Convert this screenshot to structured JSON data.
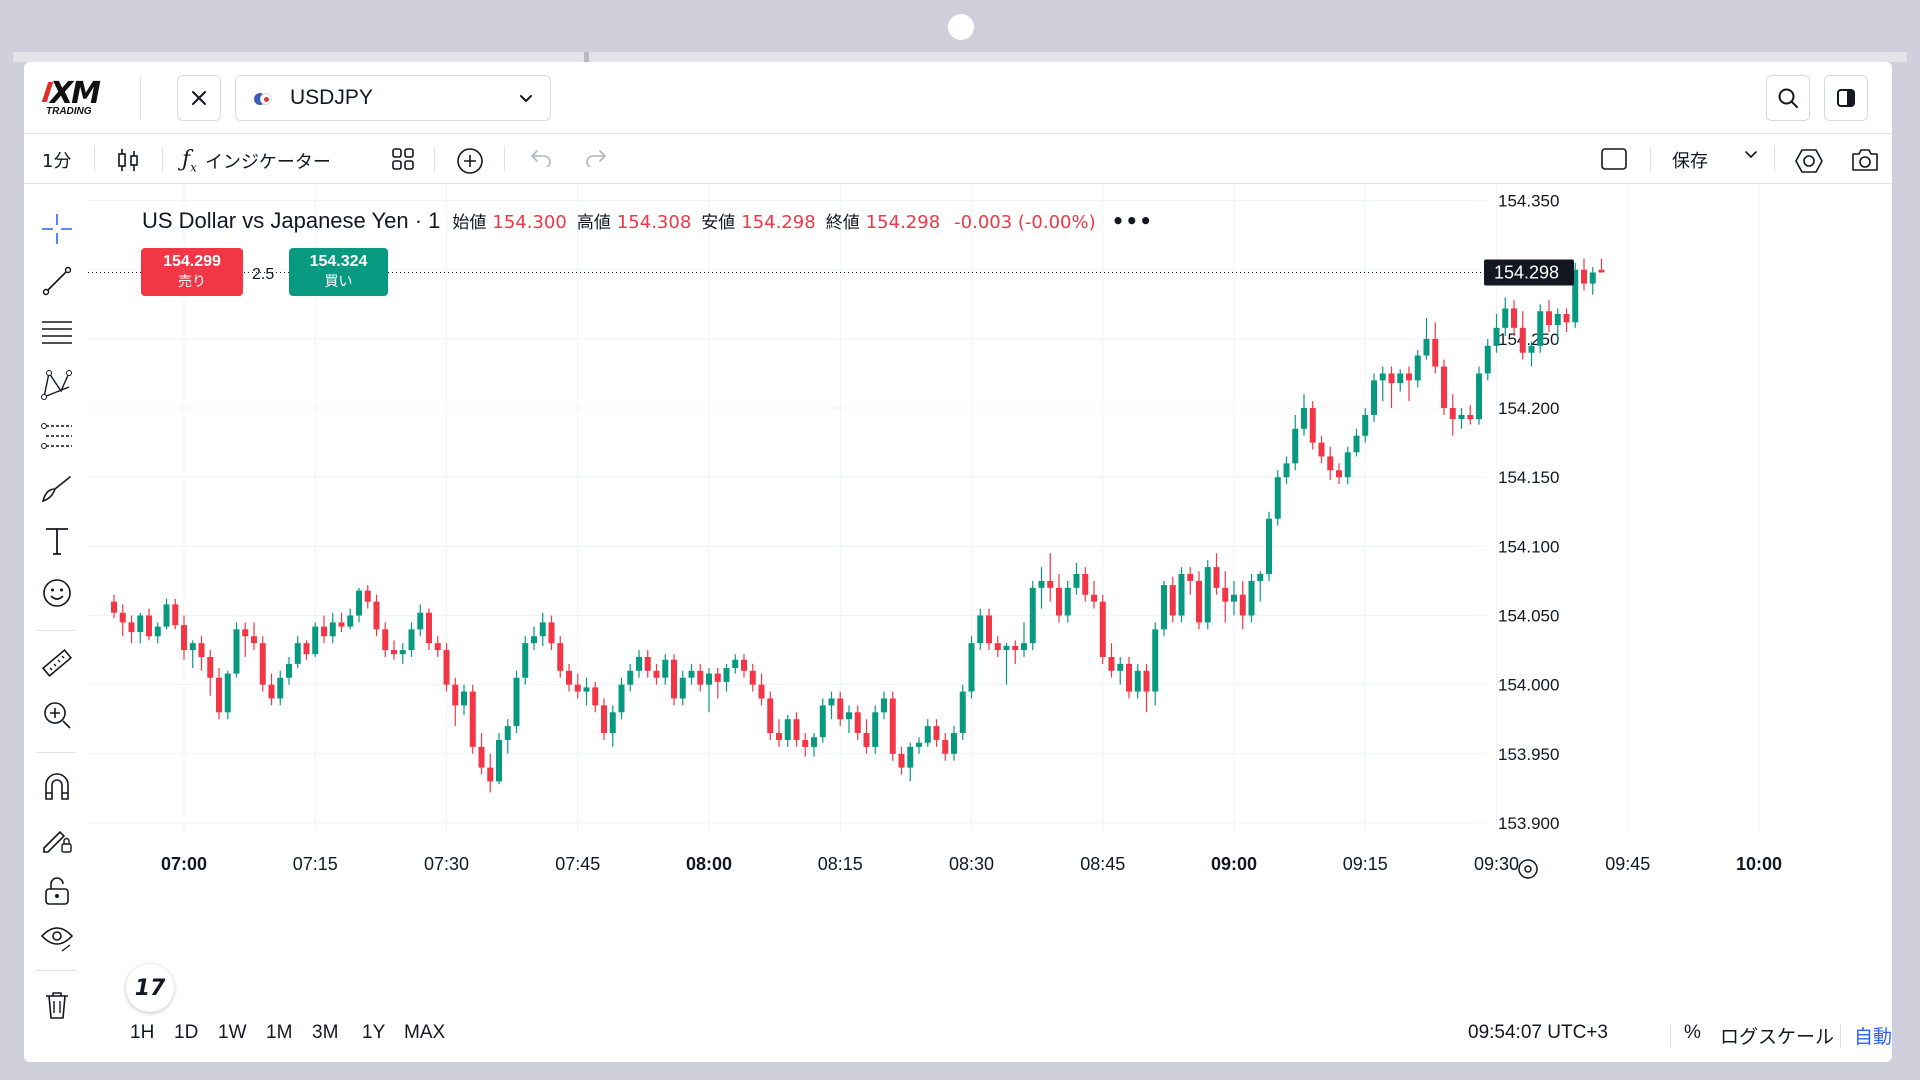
{
  "header": {
    "logo_text": "XM",
    "logo_subtext": "TRADING",
    "symbol": "USDJPY"
  },
  "toolbar": {
    "interval": "1分",
    "indicators_label": "インジケーター",
    "save_label": "保存"
  },
  "legend": {
    "name": "US Dollar vs Japanese Yen · 1",
    "open_label": "始値",
    "open": "154.300",
    "high_label": "高値",
    "high": "154.308",
    "low_label": "安値",
    "low": "154.298",
    "close_label": "終値",
    "close": "154.298",
    "change": "-0.003 (-0.00%)",
    "more": "•••"
  },
  "trade": {
    "sell_price": "154.299",
    "sell_label": "売り",
    "spread": "2.5",
    "buy_price": "154.324",
    "buy_label": "買い"
  },
  "bottom": {
    "ranges": [
      "1H",
      "1D",
      "1W",
      "1M",
      "3M",
      "1Y",
      "MAX"
    ],
    "clock": "09:54:07 UTC+3",
    "percent_label": "%",
    "log_label": "ログスケール",
    "auto_label": "自動"
  },
  "colors": {
    "up": "#089981",
    "down": "#f23645",
    "accent": "#2962ff",
    "price_tag": "#131722"
  },
  "chart_data": {
    "type": "candlestick",
    "symbol": "USDJPY",
    "interval": "1m",
    "ylim": [
      153.892,
      154.362
    ],
    "y_ticks": [
      153.9,
      153.95,
      154.0,
      154.05,
      154.1,
      154.15,
      154.2,
      154.25,
      154.3,
      154.35
    ],
    "y_tick_labels": [
      "153.900",
      "153.950",
      "154.000",
      "154.050",
      "154.100",
      "154.150",
      "154.200",
      "154.250",
      "154.300",
      "154.350"
    ],
    "x_ticks": [
      "07:00",
      "07:15",
      "07:30",
      "07:45",
      "08:00",
      "08:15",
      "08:30",
      "08:45",
      "09:00",
      "09:15",
      "09:30",
      "09:45",
      "10:00"
    ],
    "x_ticks_bold": [
      "07:00",
      "08:00",
      "09:00",
      "10:00"
    ],
    "x_start": "06:52",
    "minute_step": 1,
    "current_price": 154.298,
    "current_price_label": "154.298",
    "grid": true,
    "candles": [
      [
        154.06,
        154.065,
        154.048,
        154.052
      ],
      [
        154.052,
        154.058,
        154.035,
        154.045
      ],
      [
        154.045,
        154.05,
        154.03,
        154.038
      ],
      [
        154.038,
        154.052,
        154.03,
        154.05
      ],
      [
        154.05,
        154.055,
        154.032,
        154.035
      ],
      [
        154.035,
        154.045,
        154.03,
        154.042
      ],
      [
        154.042,
        154.062,
        154.04,
        154.058
      ],
      [
        154.058,
        154.062,
        154.04,
        154.043
      ],
      [
        154.043,
        154.05,
        154.018,
        154.025
      ],
      [
        154.025,
        154.032,
        154.012,
        154.03
      ],
      [
        154.03,
        154.035,
        154.01,
        154.02
      ],
      [
        154.02,
        154.025,
        153.992,
        154.005
      ],
      [
        154.005,
        154.012,
        153.975,
        153.98
      ],
      [
        153.98,
        154.01,
        153.975,
        154.008
      ],
      [
        154.008,
        154.045,
        154.005,
        154.04
      ],
      [
        154.04,
        154.045,
        154.02,
        154.035
      ],
      [
        154.035,
        154.045,
        154.025,
        154.03
      ],
      [
        154.03,
        154.035,
        153.995,
        154.0
      ],
      [
        154.0,
        154.008,
        153.985,
        153.99
      ],
      [
        153.99,
        154.01,
        153.985,
        154.005
      ],
      [
        154.005,
        154.02,
        154.0,
        154.015
      ],
      [
        154.015,
        154.035,
        154.012,
        154.03
      ],
      [
        154.03,
        154.032,
        154.018,
        154.022
      ],
      [
        154.022,
        154.045,
        154.02,
        154.042
      ],
      [
        154.042,
        154.05,
        154.03,
        154.035
      ],
      [
        154.035,
        154.052,
        154.03,
        154.045
      ],
      [
        154.045,
        154.052,
        154.038,
        154.042
      ],
      [
        154.042,
        154.055,
        154.04,
        154.05
      ],
      [
        154.05,
        154.07,
        154.045,
        154.068
      ],
      [
        154.068,
        154.072,
        154.055,
        154.06
      ],
      [
        154.06,
        154.065,
        154.035,
        154.04
      ],
      [
        154.04,
        154.045,
        154.02,
        154.025
      ],
      [
        154.025,
        154.032,
        154.018,
        154.022
      ],
      [
        154.022,
        154.03,
        154.015,
        154.025
      ],
      [
        154.025,
        154.045,
        154.02,
        154.04
      ],
      [
        154.04,
        154.058,
        154.035,
        154.052
      ],
      [
        154.052,
        154.055,
        154.025,
        154.03
      ],
      [
        154.03,
        154.035,
        154.02,
        154.025
      ],
      [
        154.025,
        154.03,
        153.995,
        154.0
      ],
      [
        154.0,
        154.005,
        153.97,
        153.985
      ],
      [
        153.985,
        154.0,
        153.978,
        153.995
      ],
      [
        153.995,
        154.0,
        153.95,
        153.955
      ],
      [
        153.955,
        153.965,
        153.935,
        153.94
      ],
      [
        153.94,
        153.95,
        153.922,
        153.93
      ],
      [
        153.93,
        153.965,
        153.928,
        153.96
      ],
      [
        153.96,
        153.975,
        153.95,
        153.97
      ],
      [
        153.97,
        154.01,
        153.965,
        154.005
      ],
      [
        154.005,
        154.035,
        154.0,
        154.03
      ],
      [
        154.03,
        154.042,
        154.025,
        154.035
      ],
      [
        154.035,
        154.052,
        154.028,
        154.045
      ],
      [
        154.045,
        154.05,
        154.025,
        154.03
      ],
      [
        154.03,
        154.035,
        154.005,
        154.01
      ],
      [
        154.01,
        154.015,
        153.995,
        154.0
      ],
      [
        154.0,
        154.008,
        153.99,
        153.995
      ],
      [
        153.995,
        154.005,
        153.985,
        153.998
      ],
      [
        153.998,
        154.002,
        153.98,
        153.985
      ],
      [
        153.985,
        153.99,
        153.96,
        153.965
      ],
      [
        153.965,
        153.985,
        153.955,
        153.98
      ],
      [
        153.98,
        154.005,
        153.975,
        154.0
      ],
      [
        154.0,
        154.015,
        153.995,
        154.01
      ],
      [
        154.01,
        154.025,
        154.005,
        154.02
      ],
      [
        154.02,
        154.025,
        154.005,
        154.01
      ],
      [
        154.01,
        154.015,
        154.0,
        154.005
      ],
      [
        154.005,
        154.022,
        154.0,
        154.018
      ],
      [
        154.018,
        154.022,
        153.985,
        153.99
      ],
      [
        153.99,
        154.01,
        153.985,
        154.005
      ],
      [
        154.005,
        154.015,
        154.0,
        154.01
      ],
      [
        154.01,
        154.015,
        153.995,
        154.0
      ],
      [
        154.0,
        154.012,
        153.98,
        154.008
      ],
      [
        154.008,
        154.012,
        153.99,
        154.002
      ],
      [
        154.002,
        154.015,
        153.995,
        154.012
      ],
      [
        154.012,
        154.022,
        154.008,
        154.018
      ],
      [
        154.018,
        154.022,
        154.005,
        154.01
      ],
      [
        154.01,
        154.015,
        153.995,
        154.0
      ],
      [
        154.0,
        154.008,
        153.985,
        153.99
      ],
      [
        153.99,
        153.995,
        153.96,
        153.965
      ],
      [
        153.965,
        153.975,
        153.955,
        153.96
      ],
      [
        153.96,
        153.978,
        153.955,
        153.975
      ],
      [
        153.975,
        153.98,
        153.955,
        153.96
      ],
      [
        153.96,
        153.965,
        153.948,
        153.955
      ],
      [
        153.955,
        153.965,
        153.948,
        153.962
      ],
      [
        153.962,
        153.99,
        153.958,
        153.985
      ],
      [
        153.985,
        153.995,
        153.975,
        153.99
      ],
      [
        153.99,
        153.995,
        153.97,
        153.975
      ],
      [
        153.975,
        153.985,
        153.965,
        153.98
      ],
      [
        153.98,
        153.985,
        153.96,
        153.965
      ],
      [
        153.965,
        153.975,
        153.95,
        153.955
      ],
      [
        153.955,
        153.985,
        153.95,
        153.98
      ],
      [
        153.98,
        153.995,
        153.975,
        153.99
      ],
      [
        153.99,
        153.995,
        153.945,
        153.95
      ],
      [
        153.95,
        153.955,
        153.935,
        153.94
      ],
      [
        153.94,
        153.958,
        153.93,
        153.955
      ],
      [
        153.955,
        153.962,
        153.95,
        153.958
      ],
      [
        153.958,
        153.975,
        153.955,
        153.97
      ],
      [
        153.97,
        153.975,
        153.955,
        153.96
      ],
      [
        153.96,
        153.965,
        153.945,
        153.95
      ],
      [
        153.95,
        153.97,
        153.945,
        153.965
      ],
      [
        153.965,
        154.0,
        153.96,
        153.995
      ],
      [
        153.995,
        154.035,
        153.99,
        154.03
      ],
      [
        154.03,
        154.055,
        154.025,
        154.05
      ],
      [
        154.05,
        154.055,
        154.025,
        154.03
      ],
      [
        154.03,
        154.035,
        154.02,
        154.025
      ],
      [
        154.025,
        154.03,
        154.0,
        154.028
      ],
      [
        154.028,
        154.032,
        154.015,
        154.025
      ],
      [
        154.025,
        154.045,
        154.02,
        154.03
      ],
      [
        154.03,
        154.075,
        154.025,
        154.07
      ],
      [
        154.07,
        154.085,
        154.055,
        154.075
      ],
      [
        154.075,
        154.095,
        154.06,
        154.07
      ],
      [
        154.07,
        154.08,
        154.045,
        154.05
      ],
      [
        154.05,
        154.075,
        154.045,
        154.07
      ],
      [
        154.07,
        154.088,
        154.065,
        154.08
      ],
      [
        154.08,
        154.085,
        154.06,
        154.065
      ],
      [
        154.065,
        154.075,
        154.055,
        154.06
      ],
      [
        154.06,
        154.065,
        154.015,
        154.02
      ],
      [
        154.02,
        154.03,
        154.005,
        154.01
      ],
      [
        154.01,
        154.02,
        154.0,
        154.015
      ],
      [
        154.015,
        154.02,
        153.99,
        153.995
      ],
      [
        153.995,
        154.015,
        153.99,
        154.01
      ],
      [
        154.01,
        154.015,
        153.98,
        153.995
      ],
      [
        153.995,
        154.045,
        153.985,
        154.04
      ],
      [
        154.04,
        154.075,
        154.035,
        154.072
      ],
      [
        154.072,
        154.078,
        154.045,
        154.05
      ],
      [
        154.05,
        154.085,
        154.045,
        154.08
      ],
      [
        154.08,
        154.085,
        154.065,
        154.075
      ],
      [
        154.075,
        154.082,
        154.04,
        154.045
      ],
      [
        154.045,
        154.09,
        154.04,
        154.085
      ],
      [
        154.085,
        154.095,
        154.065,
        154.07
      ],
      [
        154.07,
        154.082,
        154.045,
        154.06
      ],
      [
        154.06,
        154.075,
        154.05,
        154.065
      ],
      [
        154.065,
        154.075,
        154.04,
        154.05
      ],
      [
        154.05,
        154.08,
        154.045,
        154.075
      ],
      [
        154.075,
        154.082,
        154.06,
        154.08
      ],
      [
        154.08,
        154.125,
        154.075,
        154.12
      ],
      [
        154.12,
        154.155,
        154.115,
        154.15
      ],
      [
        154.15,
        154.165,
        154.145,
        154.16
      ],
      [
        154.16,
        154.195,
        154.155,
        154.185
      ],
      [
        154.185,
        154.21,
        154.18,
        154.2
      ],
      [
        154.2,
        154.205,
        154.17,
        154.175
      ],
      [
        154.175,
        154.18,
        154.16,
        154.165
      ],
      [
        154.165,
        154.172,
        154.148,
        154.155
      ],
      [
        154.155,
        154.16,
        154.145,
        154.15
      ],
      [
        154.15,
        154.172,
        154.145,
        154.168
      ],
      [
        154.168,
        154.185,
        154.165,
        154.18
      ],
      [
        154.18,
        154.2,
        154.175,
        154.195
      ],
      [
        154.195,
        154.225,
        154.19,
        154.22
      ],
      [
        154.22,
        154.23,
        154.205,
        154.225
      ],
      [
        154.225,
        154.23,
        154.2,
        154.218
      ],
      [
        154.218,
        154.228,
        154.212,
        154.225
      ],
      [
        154.225,
        154.23,
        154.205,
        154.22
      ],
      [
        154.22,
        154.242,
        154.215,
        154.238
      ],
      [
        154.238,
        154.265,
        154.235,
        154.25
      ],
      [
        154.25,
        154.262,
        154.225,
        154.23
      ],
      [
        154.23,
        154.235,
        154.195,
        154.2
      ],
      [
        154.2,
        154.21,
        154.18,
        154.192
      ],
      [
        154.192,
        154.2,
        154.185,
        154.195
      ],
      [
        154.195,
        154.202,
        154.188,
        154.192
      ],
      [
        154.192,
        154.23,
        154.188,
        154.225
      ],
      [
        154.225,
        154.25,
        154.22,
        154.245
      ],
      [
        154.245,
        154.268,
        154.24,
        154.258
      ],
      [
        154.258,
        154.28,
        154.252,
        154.272
      ],
      [
        154.272,
        154.278,
        154.252,
        154.258
      ],
      [
        154.258,
        154.27,
        154.235,
        154.24
      ],
      [
        154.24,
        154.248,
        154.23,
        154.245
      ],
      [
        154.245,
        154.275,
        154.24,
        154.27
      ],
      [
        154.27,
        154.278,
        154.255,
        154.26
      ],
      [
        154.26,
        154.272,
        154.248,
        154.268
      ],
      [
        154.268,
        154.272,
        154.255,
        154.262
      ],
      [
        154.262,
        154.305,
        154.258,
        154.3
      ],
      [
        154.3,
        154.308,
        154.285,
        154.29
      ],
      [
        154.29,
        154.302,
        154.282,
        154.298
      ],
      [
        154.3,
        154.308,
        154.298,
        154.298
      ]
    ]
  }
}
